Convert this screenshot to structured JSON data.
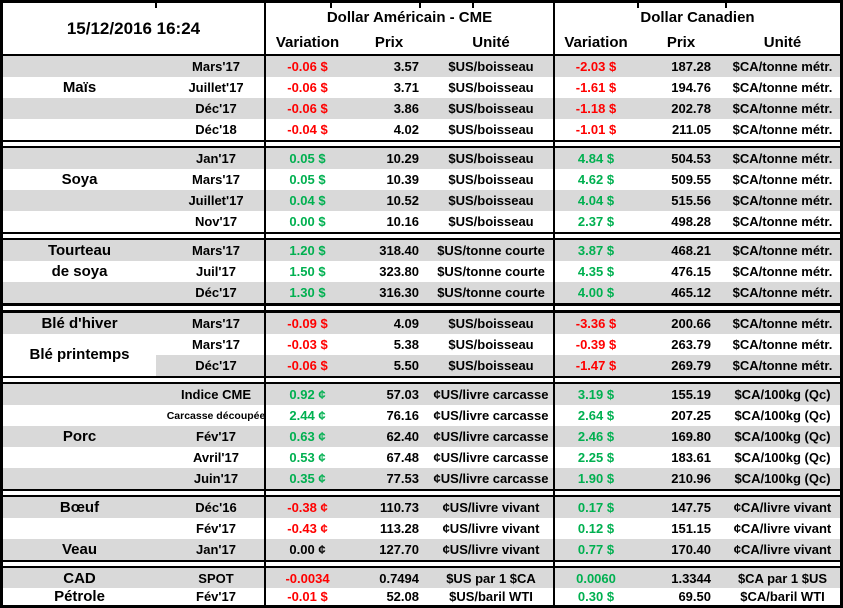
{
  "header": {
    "timestamp": "15/12/2016 16:24",
    "us_group": "Dollar Américain - CME",
    "ca_group": "Dollar Canadien",
    "us_cols": {
      "variation": "Variation",
      "prix": "Prix",
      "unite": "Unité"
    },
    "ca_cols": {
      "variation": "Variation",
      "prix": "Prix",
      "unite": "Unité"
    }
  },
  "colors": {
    "positive": "#00B050",
    "negative": "#FF0000",
    "neutral": "#000000",
    "row_stripe": "#D9D9D9",
    "border": "#000000"
  },
  "sections": [
    {
      "id": "mais",
      "rows": [
        {
          "label": "",
          "contract": "Mars'17",
          "us_variation": "-0.06 $",
          "us_trend": "down",
          "us_prix": "3.57",
          "us_unite": "$US/boisseau",
          "ca_variation": "-2.03 $",
          "ca_trend": "down",
          "ca_prix": "187.28",
          "ca_unite": "$CA/tonne métr."
        },
        {
          "label": "Maïs",
          "contract": "Juillet'17",
          "us_variation": "-0.06 $",
          "us_trend": "down",
          "us_prix": "3.71",
          "us_unite": "$US/boisseau",
          "ca_variation": "-1.61 $",
          "ca_trend": "down",
          "ca_prix": "194.76",
          "ca_unite": "$CA/tonne métr."
        },
        {
          "label": "",
          "contract": "Déc'17",
          "us_variation": "-0.06 $",
          "us_trend": "down",
          "us_prix": "3.86",
          "us_unite": "$US/boisseau",
          "ca_variation": "-1.18 $",
          "ca_trend": "down",
          "ca_prix": "202.78",
          "ca_unite": "$CA/tonne métr."
        },
        {
          "label": "",
          "contract": "Déc'18",
          "us_variation": "-0.04 $",
          "us_trend": "down",
          "us_prix": "4.02",
          "us_unite": "$US/boisseau",
          "ca_variation": "-1.01 $",
          "ca_trend": "down",
          "ca_prix": "211.05",
          "ca_unite": "$CA/tonne métr."
        }
      ]
    },
    {
      "id": "soya",
      "rows": [
        {
          "label": "",
          "contract": "Jan'17",
          "us_variation": "0.05 $",
          "us_trend": "up",
          "us_prix": "10.29",
          "us_unite": "$US/boisseau",
          "ca_variation": "4.84 $",
          "ca_trend": "up",
          "ca_prix": "504.53",
          "ca_unite": "$CA/tonne métr."
        },
        {
          "label": "Soya",
          "contract": "Mars'17",
          "us_variation": "0.05 $",
          "us_trend": "up",
          "us_prix": "10.39",
          "us_unite": "$US/boisseau",
          "ca_variation": "4.62 $",
          "ca_trend": "up",
          "ca_prix": "509.55",
          "ca_unite": "$CA/tonne métr."
        },
        {
          "label": "",
          "contract": "Juillet'17",
          "us_variation": "0.04 $",
          "us_trend": "up",
          "us_prix": "10.52",
          "us_unite": "$US/boisseau",
          "ca_variation": "4.04 $",
          "ca_trend": "up",
          "ca_prix": "515.56",
          "ca_unite": "$CA/tonne métr."
        },
        {
          "label": "",
          "contract": "Nov'17",
          "us_variation": "0.00 $",
          "us_trend": "up",
          "us_prix": "10.16",
          "us_unite": "$US/boisseau",
          "ca_variation": "2.37 $",
          "ca_trend": "up",
          "ca_prix": "498.28",
          "ca_unite": "$CA/tonne métr."
        }
      ]
    },
    {
      "id": "tourteau-de-soya",
      "rows": [
        {
          "label": "Tourteau",
          "contract": "Mars'17",
          "us_variation": "1.20 $",
          "us_trend": "up",
          "us_prix": "318.40",
          "us_unite": "$US/tonne courte",
          "ca_variation": "3.87 $",
          "ca_trend": "up",
          "ca_prix": "468.21",
          "ca_unite": "$CA/tonne métr."
        },
        {
          "label": "de soya",
          "contract": "Juil'17",
          "us_variation": "1.50 $",
          "us_trend": "up",
          "us_prix": "323.80",
          "us_unite": "$US/tonne courte",
          "ca_variation": "4.35 $",
          "ca_trend": "up",
          "ca_prix": "476.15",
          "ca_unite": "$CA/tonne métr."
        },
        {
          "label": "",
          "contract": "Déc'17",
          "us_variation": "1.30 $",
          "us_trend": "up",
          "us_prix": "316.30",
          "us_unite": "$US/tonne courte",
          "ca_variation": "4.00 $",
          "ca_trend": "up",
          "ca_prix": "465.12",
          "ca_unite": "$CA/tonne métr."
        }
      ]
    },
    {
      "id": "ble",
      "thick_top": true,
      "rows": [
        {
          "label": "Blé d'hiver",
          "contract": "Mars'17",
          "us_variation": "-0.09 $",
          "us_trend": "down",
          "us_prix": "4.09",
          "us_unite": "$US/boisseau",
          "ca_variation": "-3.36 $",
          "ca_trend": "down",
          "ca_prix": "200.66",
          "ca_unite": "$CA/tonne métr."
        },
        {
          "label": "Blé printemps",
          "label_shift": true,
          "contract": "Mars'17",
          "us_variation": "-0.03 $",
          "us_trend": "down",
          "us_prix": "5.38",
          "us_unite": "$US/boisseau",
          "ca_variation": "-0.39 $",
          "ca_trend": "down",
          "ca_prix": "263.79",
          "ca_unite": "$CA/tonne métr."
        },
        {
          "label": "",
          "label_white": true,
          "contract": "Déc'17",
          "us_variation": "-0.06 $",
          "us_trend": "down",
          "us_prix": "5.50",
          "us_unite": "$US/boisseau",
          "ca_variation": "-1.47 $",
          "ca_trend": "down",
          "ca_prix": "269.79",
          "ca_unite": "$CA/tonne métr."
        }
      ]
    },
    {
      "id": "porc",
      "rows": [
        {
          "label": "",
          "contract": "Indice CME",
          "us_variation": "0.92 ¢",
          "us_trend": "up",
          "us_prix": "57.03",
          "us_unite": "¢US/livre carcasse",
          "ca_variation": "3.19 $",
          "ca_trend": "up",
          "ca_prix": "155.19",
          "ca_unite": "$CA/100kg (Qc)"
        },
        {
          "label": "",
          "contract": "Carcasse découpée",
          "contract_small": true,
          "us_variation": "2.44 ¢",
          "us_trend": "up",
          "us_prix": "76.16",
          "us_unite": "¢US/livre carcasse",
          "ca_variation": "2.64 $",
          "ca_trend": "up",
          "ca_prix": "207.25",
          "ca_unite": "$CA/100kg (Qc)"
        },
        {
          "label": "Porc",
          "contract": "Fév'17",
          "us_variation": "0.63 ¢",
          "us_trend": "up",
          "us_prix": "62.40",
          "us_unite": "¢US/livre carcasse",
          "ca_variation": "2.46 $",
          "ca_trend": "up",
          "ca_prix": "169.80",
          "ca_unite": "$CA/100kg (Qc)"
        },
        {
          "label": "",
          "contract": "Avril'17",
          "us_variation": "0.53 ¢",
          "us_trend": "up",
          "us_prix": "67.48",
          "us_unite": "¢US/livre carcasse",
          "ca_variation": "2.25 $",
          "ca_trend": "up",
          "ca_prix": "183.61",
          "ca_unite": "$CA/100kg (Qc)"
        },
        {
          "label": "",
          "contract": "Juin'17",
          "us_variation": "0.35 ¢",
          "us_trend": "up",
          "us_prix": "77.53",
          "us_unite": "¢US/livre carcasse",
          "ca_variation": "1.90 $",
          "ca_trend": "up",
          "ca_prix": "210.96",
          "ca_unite": "$CA/100kg (Qc)"
        }
      ]
    },
    {
      "id": "boeuf-veau",
      "rows": [
        {
          "label": "Bœuf",
          "contract": "Déc'16",
          "us_variation": "-0.38 ¢",
          "us_trend": "down",
          "us_prix": "110.73",
          "us_unite": "¢US/livre vivant",
          "ca_variation": "0.17 $",
          "ca_trend": "up",
          "ca_prix": "147.75",
          "ca_unite": "¢CA/livre vivant"
        },
        {
          "label": "",
          "contract": "Fév'17",
          "us_variation": "-0.43 ¢",
          "us_trend": "down",
          "us_prix": "113.28",
          "us_unite": "¢US/livre vivant",
          "ca_variation": "0.12 $",
          "ca_trend": "up",
          "ca_prix": "151.15",
          "ca_unite": "¢CA/livre vivant"
        },
        {
          "label": "Veau",
          "contract": "Jan'17",
          "us_variation": "0.00 ¢",
          "us_trend": "flat",
          "us_prix": "127.70",
          "us_unite": "¢US/livre vivant",
          "ca_variation": "0.77 $",
          "ca_trend": "up",
          "ca_prix": "170.40",
          "ca_unite": "¢CA/livre vivant"
        }
      ]
    },
    {
      "id": "cad-petrole",
      "rows": [
        {
          "label": "CAD",
          "row_h": "h20",
          "contract": "SPOT",
          "us_variation": "-0.0034",
          "us_trend": "down",
          "us_prix": "0.7494",
          "us_unite": "$US par 1 $CA",
          "ca_variation": "0.0060",
          "ca_trend": "up",
          "ca_prix": "1.3344",
          "ca_unite": "$CA par 1 $US"
        },
        {
          "label": "Pétrole",
          "row_h": "h17",
          "contract": "Fév'17",
          "us_variation": "-0.01 $",
          "us_trend": "down",
          "us_prix": "52.08",
          "us_unite": "$US/baril WTI",
          "ca_variation": "0.30 $",
          "ca_trend": "up",
          "ca_prix": "69.50",
          "ca_unite": "$CA/baril WTI"
        }
      ]
    }
  ]
}
